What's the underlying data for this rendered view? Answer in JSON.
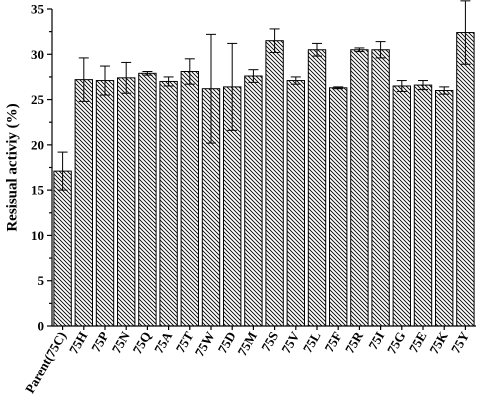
{
  "chart_data": {
    "type": "bar",
    "title": "",
    "xlabel": "",
    "ylabel": "Resisual activiy (%)",
    "ylim": [
      0,
      35
    ],
    "yticks": [
      0,
      5,
      10,
      15,
      20,
      25,
      30,
      35
    ],
    "grid": false,
    "legend": "none",
    "bar_pattern": "diagonal-hatch",
    "colors": {
      "bar_stroke": "#000000",
      "hatch": "#000000",
      "background": "#ffffff"
    },
    "categories": [
      "Parent(75C)",
      "75H",
      "75P",
      "75N",
      "75Q",
      "75A",
      "75T",
      "75W",
      "75D",
      "75M",
      "75S",
      "75V",
      "75L",
      "75F",
      "75R",
      "75I",
      "75G",
      "75E",
      "75K",
      "75Y"
    ],
    "values": [
      17.1,
      27.2,
      27.1,
      27.4,
      27.9,
      27.0,
      28.1,
      26.2,
      26.4,
      27.6,
      31.5,
      27.1,
      30.5,
      26.3,
      30.5,
      30.5,
      26.5,
      26.6,
      26.0,
      32.4
    ],
    "errors": [
      2.1,
      2.4,
      1.6,
      1.7,
      0.2,
      0.5,
      1.4,
      6.0,
      4.8,
      0.7,
      1.3,
      0.4,
      0.7,
      0.1,
      0.2,
      0.9,
      0.6,
      0.5,
      0.4,
      3.5
    ]
  }
}
